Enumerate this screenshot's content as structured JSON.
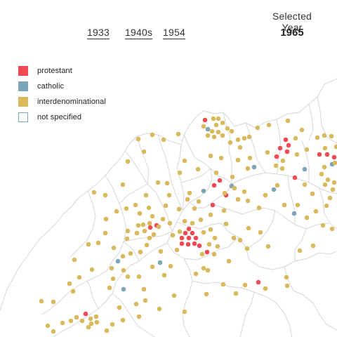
{
  "year_links": [
    "1933",
    "1940s",
    "1954"
  ],
  "selected": {
    "label": "Selected Year",
    "value": "1965"
  },
  "legend": [
    {
      "label": "protestant",
      "color": "#f04b55",
      "outline": false
    },
    {
      "label": "catholic",
      "color": "#7aa6b8",
      "outline": false
    },
    {
      "label": "interdenominational",
      "color": "#d8b95c",
      "outline": false
    },
    {
      "label": "not specified",
      "color": "#7aa6b8",
      "outline": true
    }
  ],
  "colors": {
    "border": "#d6d6d6",
    "protestant": "#f04b55",
    "catholic": "#7aa6b8",
    "interdenominational": "#d8b95c"
  }
}
